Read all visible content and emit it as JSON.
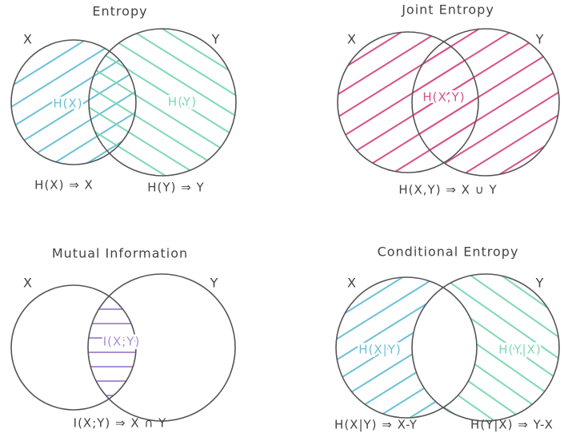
{
  "panels": [
    {
      "title": "Entropy",
      "x_label": "X",
      "y_label": "Y",
      "regions": [
        "H(X)",
        "H(Y)"
      ],
      "captions": [
        "H(X) ⇒ X",
        "H(Y) ⇒ Y"
      ]
    },
    {
      "title": "Joint Entropy",
      "x_label": "X",
      "y_label": "Y",
      "regions": [
        "H(X,Y)"
      ],
      "captions": [
        "H(X,Y) ⇒ X ∪ Y"
      ]
    },
    {
      "title": "Mutual Information",
      "x_label": "X",
      "y_label": "Y",
      "regions": [
        "I(X;Y)"
      ],
      "captions": [
        "I(X;Y) ⇒ X ∩ Y"
      ]
    },
    {
      "title": "Conditional Entropy",
      "x_label": "X",
      "y_label": "Y",
      "regions": [
        "H(X|Y)",
        "H(Y|X)"
      ],
      "captions": [
        "H(X|Y) ⇒ X-Y",
        "H(Y|X) ⇒ Y-X"
      ]
    }
  ]
}
